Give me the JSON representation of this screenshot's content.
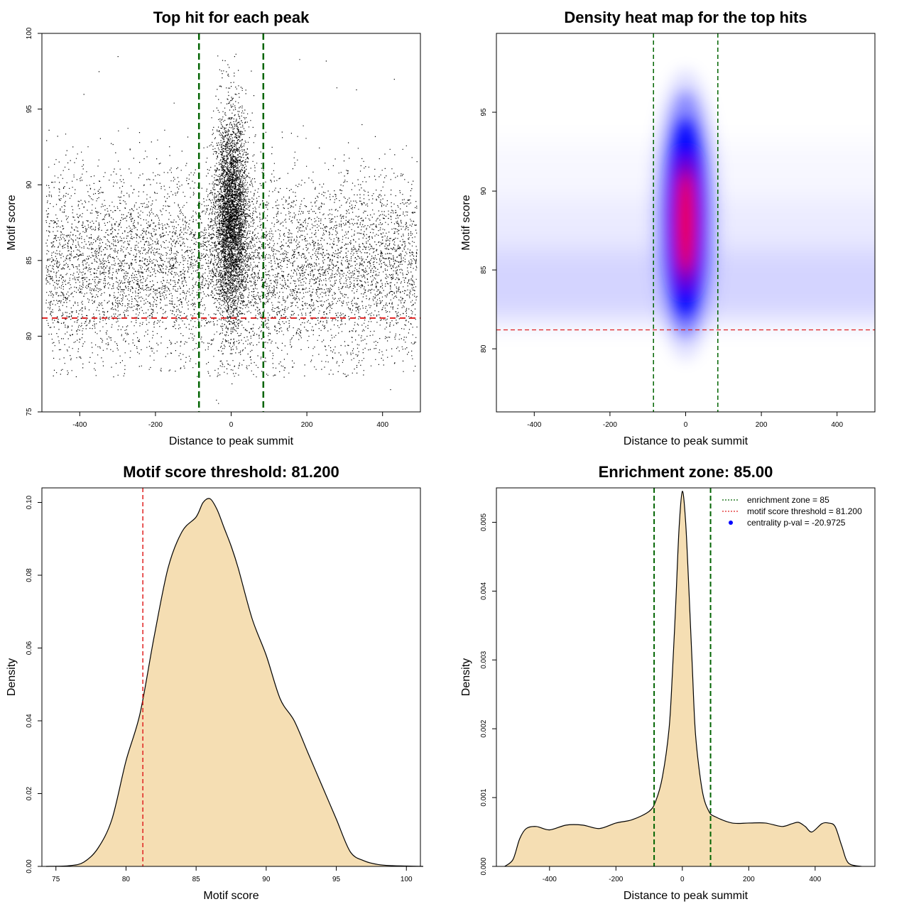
{
  "chart_data": [
    {
      "id": "scatter",
      "type": "scatter",
      "title": "Top hit for each peak",
      "xlabel": "Distance to peak summit",
      "ylabel": "Motif score",
      "xlim": [
        -500,
        500
      ],
      "ylim": [
        75,
        100
      ],
      "xticks": [
        "-400",
        "-200",
        "0",
        "200",
        "400"
      ],
      "yticks": [
        "75",
        "80",
        "85",
        "90",
        "95",
        "100"
      ],
      "threshold_y": 81.2,
      "zone_x": [
        -85,
        85
      ],
      "colors": {
        "points": "#000000",
        "threshold": "#e02020",
        "zone": "#006400"
      }
    },
    {
      "id": "heatmap",
      "type": "heatmap",
      "title": "Density heat map for the top hits",
      "xlabel": "Distance to peak summit",
      "ylabel": "Motif score",
      "xlim": [
        -500,
        500
      ],
      "ylim": [
        76,
        100
      ],
      "xticks": [
        "-400",
        "-200",
        "0",
        "200",
        "400"
      ],
      "yticks": [
        "80",
        "85",
        "90",
        "95"
      ],
      "threshold_y": 81.2,
      "zone_x": [
        -85,
        85
      ],
      "hotspot": {
        "x": 0,
        "y": 88
      },
      "colors": {
        "low": "#ffffff",
        "mid": "#0000ff",
        "high": "#ff0000",
        "threshold": "#e02020",
        "zone": "#006400"
      }
    },
    {
      "id": "score-density",
      "type": "area",
      "title": "Motif score threshold: 81.200",
      "xlabel": "Motif score",
      "ylabel": "Density",
      "xlim": [
        74,
        101
      ],
      "ylim": [
        0,
        0.104
      ],
      "xticks": [
        "75",
        "80",
        "85",
        "90",
        "95",
        "100"
      ],
      "yticks": [
        "0.00",
        "0.02",
        "0.04",
        "0.06",
        "0.08",
        "0.10"
      ],
      "threshold_x": 81.2,
      "x": [
        74.3,
        76,
        77,
        78,
        79,
        80,
        81,
        82,
        83,
        84,
        85,
        85.5,
        86,
        86.5,
        87,
        87.5,
        88,
        89,
        90,
        91,
        92,
        93,
        94,
        95,
        96,
        97,
        98,
        99,
        100,
        101.2
      ],
      "y": [
        0,
        0.0002,
        0.0012,
        0.005,
        0.013,
        0.029,
        0.042,
        0.063,
        0.082,
        0.092,
        0.096,
        0.1,
        0.101,
        0.098,
        0.093,
        0.088,
        0.082,
        0.068,
        0.058,
        0.046,
        0.04,
        0.031,
        0.022,
        0.013,
        0.004,
        0.0015,
        0.0005,
        0.0002,
        0.0001,
        0
      ],
      "colors": {
        "fill": "#f5deb3",
        "line": "#000000",
        "threshold": "#e02020"
      }
    },
    {
      "id": "distance-density",
      "type": "area",
      "title": "Enrichment zone: 85.00",
      "xlabel": "Distance to peak summit",
      "ylabel": "Density",
      "xlim": [
        -560,
        580
      ],
      "ylim": [
        0,
        0.0055
      ],
      "xticks": [
        "-400",
        "-200",
        "0",
        "200",
        "400"
      ],
      "yticks": [
        "0.000",
        "0.001",
        "0.002",
        "0.003",
        "0.004",
        "0.005"
      ],
      "zone_x": [
        -85,
        85
      ],
      "x": [
        -535,
        -510,
        -490,
        -470,
        -440,
        -400,
        -350,
        -300,
        -250,
        -200,
        -150,
        -100,
        -80,
        -60,
        -40,
        -30,
        -20,
        -10,
        0,
        10,
        20,
        30,
        40,
        60,
        80,
        100,
        150,
        200,
        250,
        300,
        330,
        350,
        370,
        390,
        420,
        440,
        460,
        480,
        500,
        540
      ],
      "y": [
        0,
        0.0001,
        0.0004,
        0.00055,
        0.00058,
        0.00053,
        0.0006,
        0.0006,
        0.00055,
        0.00063,
        0.00068,
        0.0008,
        0.00095,
        0.0013,
        0.002,
        0.0028,
        0.0038,
        0.0049,
        0.00545,
        0.005,
        0.004,
        0.0029,
        0.0019,
        0.0011,
        0.0008,
        0.00072,
        0.00063,
        0.00063,
        0.00063,
        0.00058,
        0.00062,
        0.00064,
        0.00058,
        0.0005,
        0.00062,
        0.00063,
        0.00058,
        0.0003,
        5e-05,
        0
      ],
      "legend": [
        {
          "label": "enrichment zone = 85",
          "style": "dotted",
          "color": "#006400"
        },
        {
          "label": "motif score threshold = 81.200",
          "style": "dotted",
          "color": "#e02020"
        },
        {
          "label": "centrality p-val = -20.9725",
          "style": "dot",
          "color": "#0000ff"
        }
      ],
      "colors": {
        "fill": "#f5deb3",
        "line": "#000000",
        "zone": "#006400"
      }
    }
  ]
}
